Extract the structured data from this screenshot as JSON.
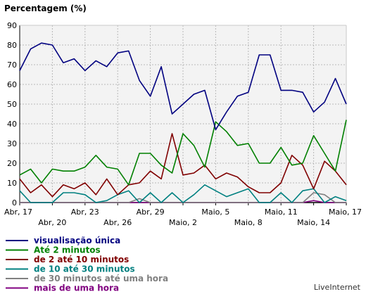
{
  "brand": "LiveInternet",
  "chart_data": {
    "type": "line",
    "title": "Percentagem (%)",
    "ylim": [
      0,
      90
    ],
    "yticks": [
      0,
      10,
      20,
      30,
      40,
      50,
      60,
      70,
      80,
      90
    ],
    "grid": true,
    "legend_position": "bottom-left",
    "x_tick_labels": [
      {
        "index": 0,
        "label": "Abr, 17"
      },
      {
        "index": 3,
        "label": "Abr, 20"
      },
      {
        "index": 6,
        "label": "Abr, 23"
      },
      {
        "index": 9,
        "label": "Abr, 26"
      },
      {
        "index": 12,
        "label": "Abr, 29"
      },
      {
        "index": 15,
        "label": "Maio, 2"
      },
      {
        "index": 18,
        "label": "Maio, 5"
      },
      {
        "index": 21,
        "label": "Maio, 8"
      },
      {
        "index": 24,
        "label": "Maio, 11"
      },
      {
        "index": 27,
        "label": "Maio, 14"
      },
      {
        "index": 30,
        "label": "Maio, 17"
      }
    ],
    "series": [
      {
        "name": "visualisação única",
        "color": "#000080",
        "values": [
          67,
          78,
          81,
          80,
          71,
          73,
          67,
          72,
          69,
          76,
          77,
          62,
          54,
          69,
          45,
          50,
          55,
          57,
          37,
          46,
          54,
          56,
          75,
          75,
          57,
          57,
          56,
          46,
          51,
          63,
          50
        ]
      },
      {
        "name": "Até 2 minutos",
        "color": "#008000",
        "values": [
          14,
          17,
          10,
          17,
          16,
          16,
          18,
          24,
          18,
          17,
          9,
          25,
          25,
          19,
          15,
          35,
          29,
          18,
          41,
          36,
          29,
          30,
          20,
          20,
          28,
          19,
          20,
          34,
          25,
          16,
          42
        ]
      },
      {
        "name": "de 2 até 10 minutos",
        "color": "#800000",
        "values": [
          12,
          5,
          9,
          3,
          9,
          7,
          10,
          4,
          12,
          4,
          9,
          10,
          16,
          12,
          35,
          14,
          15,
          19,
          12,
          15,
          13,
          8,
          5,
          5,
          10,
          24,
          19,
          7,
          21,
          16,
          9
        ]
      },
      {
        "name": "de 10 até 30 minutos",
        "color": "#008080",
        "values": [
          6,
          0,
          0,
          0,
          5,
          5,
          4,
          0,
          1,
          4,
          6,
          0,
          5,
          0,
          5,
          0,
          4,
          9,
          6,
          3,
          5,
          7,
          0,
          0,
          5,
          0,
          6,
          7,
          0,
          3,
          1
        ]
      },
      {
        "name": "de 30 minutos até uma hora",
        "color": "#808080",
        "values": [
          0,
          0,
          0,
          0,
          0,
          0,
          0,
          0,
          0,
          0,
          0,
          2,
          0,
          0,
          0,
          0,
          0,
          0,
          0,
          0,
          0,
          0,
          0,
          0,
          0,
          0,
          0,
          5,
          4,
          0,
          0
        ]
      },
      {
        "name": "mais de uma hora",
        "color": "#800080",
        "values": [
          0,
          0,
          0,
          0,
          0,
          0,
          0,
          0,
          0,
          0,
          0,
          0,
          0,
          0,
          0,
          0,
          0,
          0,
          0,
          0,
          0,
          0,
          0,
          0,
          0,
          0,
          0,
          1,
          0,
          0,
          0
        ]
      }
    ]
  }
}
